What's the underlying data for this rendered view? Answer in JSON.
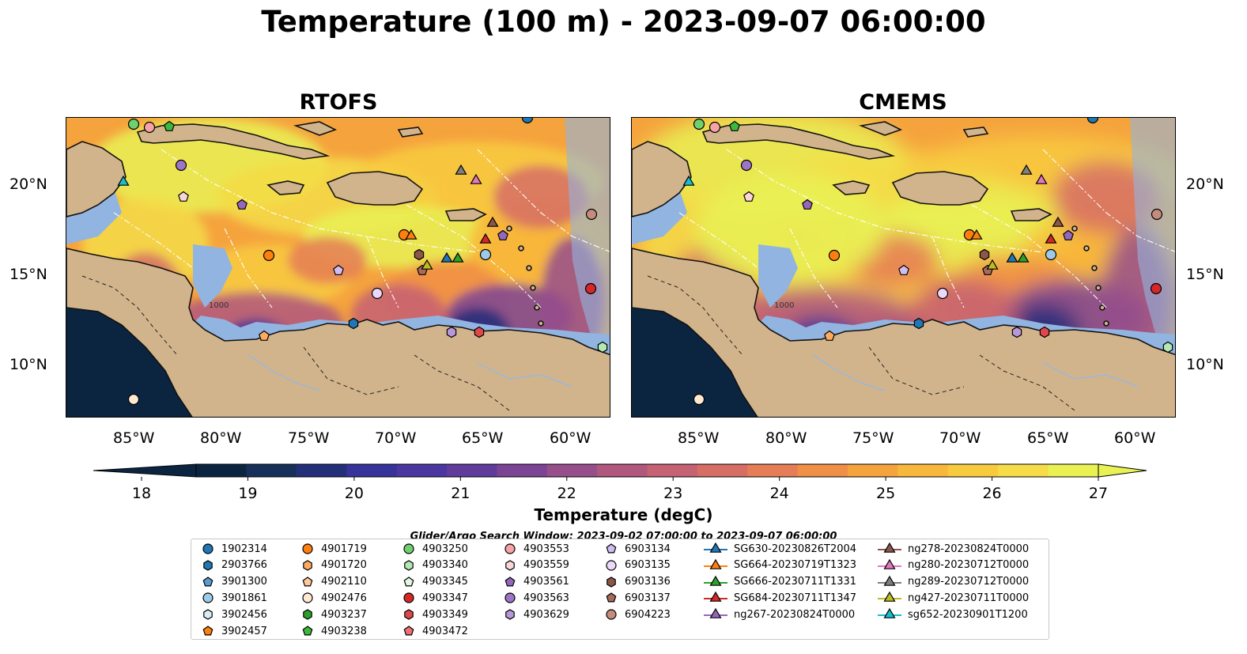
{
  "title": "Temperature (100 m) - 2023-09-07 06:00:00",
  "panels": [
    {
      "id": "rtofs",
      "title": "RTOFS"
    },
    {
      "id": "cmems",
      "title": "CMEMS"
    }
  ],
  "axes": {
    "lat_labels": [
      "20°N",
      "15°N",
      "10°N"
    ],
    "lon_labels": [
      "85°W",
      "80°W",
      "75°W",
      "70°W",
      "65°W",
      "60°W"
    ]
  },
  "colorbar": {
    "label": "Temperature (degC)",
    "ticks": [
      "18",
      "19",
      "20",
      "21",
      "22",
      "23",
      "24",
      "25",
      "26",
      "27"
    ],
    "range": [
      18,
      27
    ],
    "colors": [
      "#0b2540",
      "#17305a",
      "#242f7a",
      "#36339a",
      "#4a37a0",
      "#603c9c",
      "#7c4494",
      "#974f8c",
      "#b0587e",
      "#c56273",
      "#d66e66",
      "#e57e56",
      "#f08f47",
      "#f5a33d",
      "#f8b83b",
      "#f8cb3e",
      "#f5dc48",
      "#e9f153"
    ]
  },
  "contour_labels": [
    "1000",
    "1000"
  ],
  "search_window": "Glider/Argo Search Window: 2023-09-02 07:00:00 to 2023-09-07 06:00:00",
  "legend": {
    "columns": [
      [
        {
          "label": "1902314",
          "marker": "circle",
          "color": "#1f77b4"
        },
        {
          "label": "2903766",
          "marker": "hexagon",
          "color": "#1f77b4"
        },
        {
          "label": "3901300",
          "marker": "pentagon",
          "color": "#5a9bd4"
        },
        {
          "label": "3901861",
          "marker": "circle",
          "color": "#9ecae9"
        },
        {
          "label": "3902456",
          "marker": "hexagon",
          "color": "#d6ecf7"
        },
        {
          "label": "3902457",
          "marker": "pentagon",
          "color": "#ff7f0e"
        }
      ],
      [
        {
          "label": "4901719",
          "marker": "circle",
          "color": "#ff7f0e"
        },
        {
          "label": "4901720",
          "marker": "hexagon",
          "color": "#ffaa5e"
        },
        {
          "label": "4902110",
          "marker": "pentagon",
          "color": "#ffc99a"
        },
        {
          "label": "4902476",
          "marker": "circle",
          "color": "#ffe9d2"
        },
        {
          "label": "4903237",
          "marker": "hexagon",
          "color": "#2ca02c"
        },
        {
          "label": "4903238",
          "marker": "pentagon",
          "color": "#3cb83c"
        }
      ],
      [
        {
          "label": "4903250",
          "marker": "circle",
          "color": "#6fd06f"
        },
        {
          "label": "4903340",
          "marker": "hexagon",
          "color": "#b3e8b3"
        },
        {
          "label": "4903345",
          "marker": "pentagon",
          "color": "#e2f8e2"
        },
        {
          "label": "4903347",
          "marker": "circle",
          "color": "#d62728"
        },
        {
          "label": "4903349",
          "marker": "hexagon",
          "color": "#e0474a"
        },
        {
          "label": "4903472",
          "marker": "pentagon",
          "color": "#ef6f72"
        }
      ],
      [
        {
          "label": "4903553",
          "marker": "circle",
          "color": "#f5a3a4"
        },
        {
          "label": "4903559",
          "marker": "hexagon",
          "color": "#fad6d6"
        },
        {
          "label": "4903561",
          "marker": "pentagon",
          "color": "#9467bd"
        },
        {
          "label": "4903563",
          "marker": "circle",
          "color": "#9e74c6"
        },
        {
          "label": "4903629",
          "marker": "hexagon",
          "color": "#b897d9"
        }
      ],
      [
        {
          "label": "6903134",
          "marker": "pentagon",
          "color": "#d2bdf0"
        },
        {
          "label": "6903135",
          "marker": "circle",
          "color": "#ead9fb"
        },
        {
          "label": "6903136",
          "marker": "hexagon",
          "color": "#8c564b"
        },
        {
          "label": "6903137",
          "marker": "pentagon",
          "color": "#a66b5e"
        },
        {
          "label": "6904223",
          "marker": "circle",
          "color": "#c48c7c"
        }
      ],
      [
        {
          "label": "SG630-20230826T2004",
          "marker": "triangle",
          "color": "#1f77b4"
        },
        {
          "label": "SG664-20230719T1323",
          "marker": "triangle",
          "color": "#ff7f0e"
        },
        {
          "label": "SG666-20230711T1331",
          "marker": "triangle",
          "color": "#2ca02c"
        },
        {
          "label": "SG684-20230711T1347",
          "marker": "triangle",
          "color": "#d62728"
        },
        {
          "label": "ng267-20230824T0000",
          "marker": "triangle",
          "color": "#9467bd"
        }
      ],
      [
        {
          "label": "ng278-20230824T0000",
          "marker": "triangle",
          "color": "#8c564b"
        },
        {
          "label": "ng280-20230712T0000",
          "marker": "triangle",
          "color": "#e377c2"
        },
        {
          "label": "ng289-20230712T0000",
          "marker": "triangle",
          "color": "#7f7f7f"
        },
        {
          "label": "ng427-20230711T0000",
          "marker": "triangle",
          "color": "#bcbd22"
        },
        {
          "label": "sg652-20230901T1200",
          "marker": "triangle",
          "color": "#17becf"
        }
      ]
    ]
  },
  "map": {
    "colors": {
      "land": "#d2b48c",
      "shelf": "#92b4e0",
      "deep_cold": "#0b2540",
      "coast": "#111111"
    }
  }
}
